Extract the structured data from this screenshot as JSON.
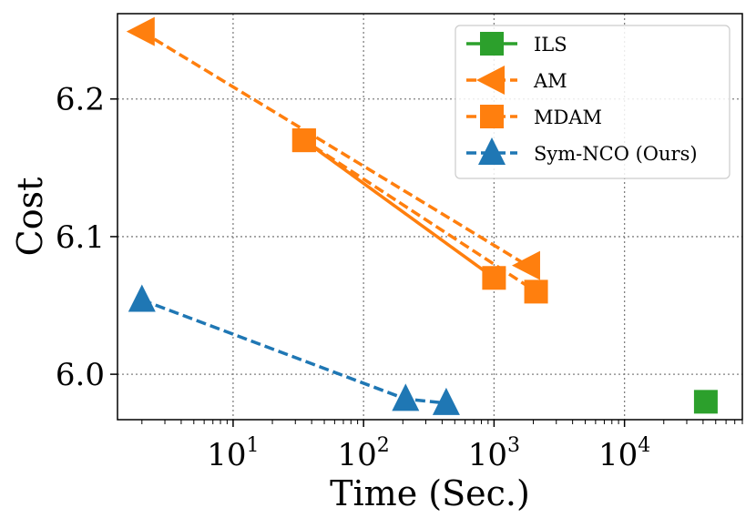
{
  "chart_data": {
    "type": "scatter",
    "xlabel": "Time (Sec.)",
    "ylabel": "Cost",
    "x_scale": "log",
    "xlim": [
      1.3,
      80000
    ],
    "ylim": [
      5.967,
      6.262
    ],
    "x_ticks": [
      {
        "base": "10",
        "exp": "1",
        "value": 10
      },
      {
        "base": "10",
        "exp": "2",
        "value": 100
      },
      {
        "base": "10",
        "exp": "3",
        "value": 1000
      },
      {
        "base": "10",
        "exp": "4",
        "value": 10000
      }
    ],
    "y_ticks": [
      {
        "label": "6.0",
        "value": 6.0
      },
      {
        "label": "6.1",
        "value": 6.1
      },
      {
        "label": "6.2",
        "value": 6.2
      }
    ],
    "grid": true,
    "legend_position": "top-right",
    "series": [
      {
        "name": "ILS",
        "color": "#2ca02c",
        "marker": "square",
        "line": "solid",
        "points": [
          {
            "x": 42000,
            "y": 5.98
          }
        ]
      },
      {
        "name": "AM",
        "color": "#ff7f0e",
        "marker": "triangle-left",
        "line": "dashed",
        "points": [
          {
            "x": 2.0,
            "y": 6.249
          },
          {
            "x": 1800,
            "y": 6.079
          }
        ]
      },
      {
        "name": "MDAM",
        "color": "#ff7f0e",
        "marker": "square",
        "line": "dashed",
        "points": [
          {
            "x": 35,
            "y": 6.17
          },
          {
            "x": 1000,
            "y": 6.07
          },
          {
            "x": 35,
            "y": 6.17
          },
          {
            "x": 2100,
            "y": 6.06
          }
        ]
      },
      {
        "name": "Sym-NCO (Ours)",
        "color": "#1f77b4",
        "marker": "triangle-up",
        "line": "dashed",
        "points": [
          {
            "x": 2.0,
            "y": 6.054
          },
          {
            "x": 210,
            "y": 5.982
          },
          {
            "x": 430,
            "y": 5.979
          }
        ]
      }
    ]
  }
}
